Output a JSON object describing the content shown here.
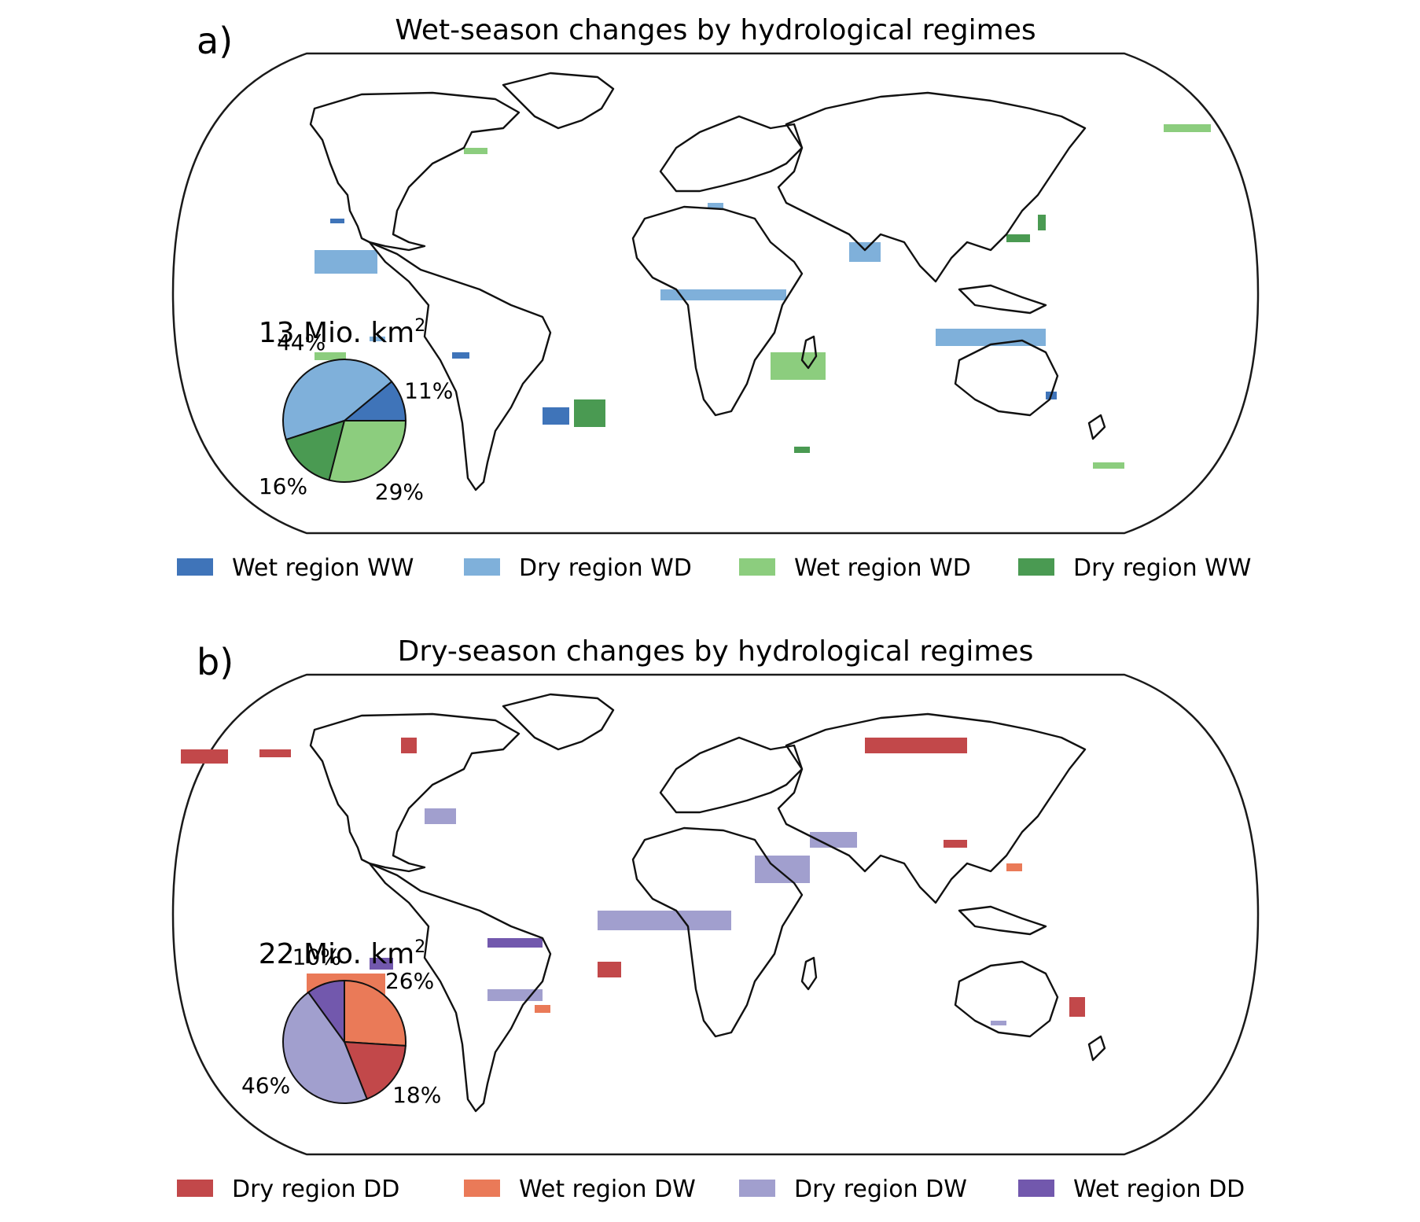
{
  "panels": [
    {
      "label": "a)",
      "title": "Wet-season changes by hydrological regimes",
      "pie": {
        "total_text": "13 Mio. km",
        "total_sup": "2",
        "slices": [
          {
            "name": "Wet region WW",
            "value": 11,
            "label": "11%",
            "color": "#3f74b9"
          },
          {
            "name": "Dry region WD",
            "value": 44,
            "label": "44%",
            "color": "#7fb0da"
          },
          {
            "name": "Dry region WW",
            "value": 16,
            "label": "16%",
            "color": "#4a9a52"
          },
          {
            "name": "Wet region WD",
            "value": 29,
            "label": "29%",
            "color": "#8ccd7e"
          }
        ]
      },
      "legend": [
        {
          "label": "Wet region WW",
          "color": "#3f74b9"
        },
        {
          "label": "Dry region WD",
          "color": "#7fb0da"
        },
        {
          "label": "Wet region WD",
          "color": "#8ccd7e"
        },
        {
          "label": "Dry region WW",
          "color": "#4a9a52"
        }
      ]
    },
    {
      "label": "b)",
      "title": "Dry-season changes by hydrological regimes",
      "pie": {
        "total_text": "22 Mio. km",
        "total_sup": "2",
        "slices": [
          {
            "name": "Wet region DW",
            "value": 26,
            "label": "26%",
            "color": "#ea7a58"
          },
          {
            "name": "Dry region DD",
            "value": 18,
            "label": "18%",
            "color": "#c2484a"
          },
          {
            "name": "Dry region DW",
            "value": 46,
            "label": "46%",
            "color": "#a19fce"
          },
          {
            "name": "Wet region DD",
            "value": 10,
            "label": "10%",
            "color": "#7258ad"
          }
        ]
      },
      "legend": [
        {
          "label": "Dry region DD",
          "color": "#c2484a"
        },
        {
          "label": "Wet region DW",
          "color": "#ea7a58"
        },
        {
          "label": "Dry region DW",
          "color": "#a19fce"
        },
        {
          "label": "Wet region DD",
          "color": "#7258ad"
        }
      ]
    }
  ]
}
